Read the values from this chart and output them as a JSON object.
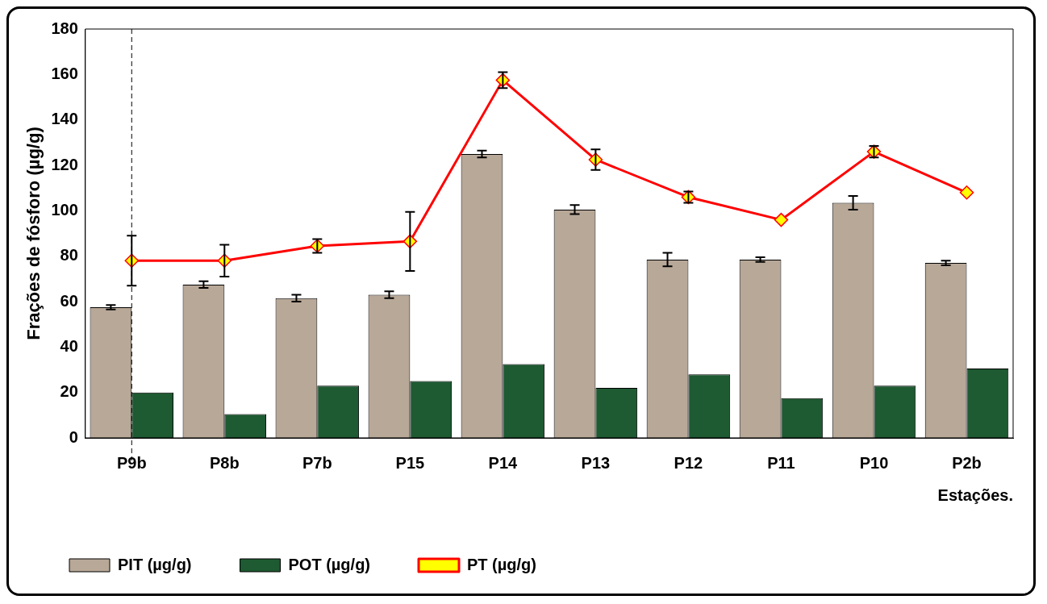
{
  "chart_data": {
    "type": "bar",
    "xlabel": "Estações.",
    "ylabel": "Frações de fósforo (µg/g)",
    "categories": [
      "P9b",
      "P8b",
      "P7b",
      "P15",
      "P14",
      "P13",
      "P12",
      "P11",
      "P10",
      "P2b"
    ],
    "series": [
      {
        "name": "PIT (µg/g)",
        "color": "#b8a898",
        "values": [
          57.5,
          67.5,
          61.5,
          63,
          125,
          100.5,
          78.5,
          78.5,
          103.5,
          77
        ],
        "errors": [
          1,
          1.5,
          1.5,
          1.5,
          1.5,
          2,
          3,
          1,
          3,
          1
        ]
      },
      {
        "name": "POT (µg/g)",
        "color": "#1e5a32",
        "values": [
          20,
          10.5,
          23,
          25,
          32.5,
          22,
          28,
          17.5,
          23,
          30.5
        ]
      },
      {
        "name": "PT (µg/g)",
        "type": "line",
        "color": "#ff0000",
        "colors": [
          "#ffff00",
          "#ffff00",
          "#ffff00",
          "#ffff00",
          "#ffff00",
          "#ffff00",
          "#ffff00",
          "#ffff00",
          "#ffff00",
          "#ffff00"
        ],
        "values": [
          78,
          78,
          84.5,
          86.5,
          157.5,
          122.5,
          106,
          96,
          126,
          108
        ],
        "errors": [
          11,
          7,
          3,
          13,
          3.5,
          4.5,
          2.5,
          null,
          2.5,
          null
        ]
      }
    ],
    "ylim": [
      0,
      180
    ],
    "yticks": [
      0,
      20,
      40,
      60,
      80,
      100,
      120,
      140,
      160,
      180
    ],
    "ref_lines": [
      {
        "axis": "x",
        "value": "P9b",
        "line_style": "dashed",
        "color": "#000000"
      }
    ],
    "grid": false,
    "legend": "bottom",
    "marker": "diamond",
    "line_style": "solid"
  }
}
